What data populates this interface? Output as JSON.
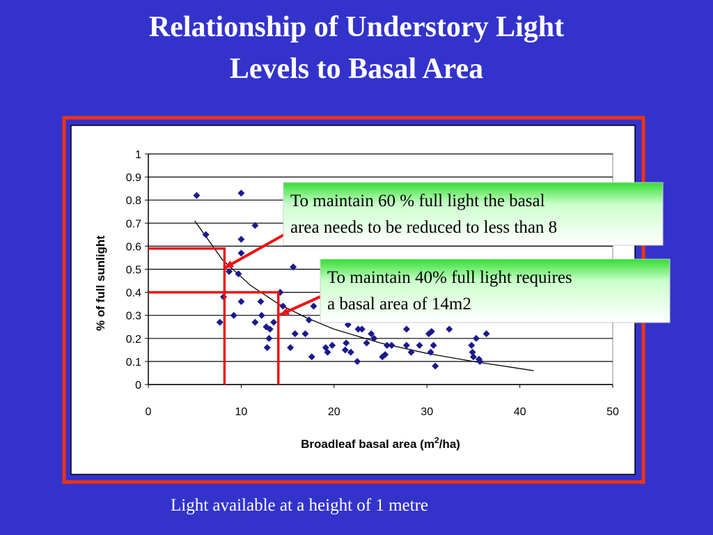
{
  "title": [
    "Relationship of Understory Light",
    "Levels to Basal Area"
  ],
  "caption": "Light available at a height of 1 metre",
  "chart_data": {
    "type": "scatter",
    "x_label": [
      "Broadleaf basal area (m",
      "2",
      "/ha)"
    ],
    "y_label": "% of full sunlight",
    "xlim": [
      0,
      50
    ],
    "xticks": [
      0,
      10,
      20,
      30,
      40,
      50
    ],
    "ylim": [
      0,
      1
    ],
    "yticks": [
      0,
      0.1,
      0.2,
      0.3,
      0.4,
      0.5,
      0.6,
      0.7,
      0.8,
      0.9,
      1
    ],
    "grid": true,
    "color": "#1a1a8c",
    "guide_color": "#ee1111",
    "x": [
      5.2,
      6.2,
      10,
      7.7,
      8.1,
      8.7,
      9.2,
      9.7,
      10,
      10,
      10,
      11.5,
      11.5,
      12.1,
      12.2,
      12.7,
      12.8,
      13,
      13.1,
      13.5,
      14.2,
      14.5,
      15.3,
      15.6,
      15.8,
      16.9,
      17.3,
      17.6,
      17.8,
      19.1,
      19.3,
      19.8,
      21.2,
      21.3,
      21.5,
      21.8,
      22.5,
      22.6,
      23,
      23.5,
      24,
      24.3,
      25.2,
      25.5,
      25.7,
      26.2,
      27.8,
      27.8,
      28.3,
      29.2,
      30.2,
      30.4,
      30.5,
      30.7,
      30.9,
      32.4,
      34.8,
      34.9,
      35,
      35.3,
      35.6,
      35.7,
      36.4
    ],
    "values": [
      0.82,
      0.65,
      0.83,
      0.27,
      0.38,
      0.49,
      0.3,
      0.48,
      0.63,
      0.57,
      0.36,
      0.69,
      0.27,
      0.36,
      0.3,
      0.25,
      0.16,
      0.2,
      0.24,
      0.27,
      0.4,
      0.34,
      0.16,
      0.51,
      0.22,
      0.22,
      0.28,
      0.12,
      0.34,
      0.16,
      0.14,
      0.17,
      0.15,
      0.18,
      0.26,
      0.14,
      0.1,
      0.24,
      0.24,
      0.18,
      0.22,
      0.2,
      0.12,
      0.13,
      0.17,
      0.17,
      0.24,
      0.17,
      0.14,
      0.17,
      0.22,
      0.14,
      0.23,
      0.17,
      0.08,
      0.24,
      0.17,
      0.14,
      0.12,
      0.2,
      0.11,
      0.1,
      0.22
    ],
    "trend": {
      "x": [
        5,
        8,
        11,
        14,
        17,
        20,
        25,
        30,
        35,
        41.5
      ],
      "values": [
        0.71,
        0.54,
        0.43,
        0.35,
        0.29,
        0.24,
        0.18,
        0.135,
        0.1,
        0.06
      ]
    },
    "guides": [
      {
        "x": 8.2,
        "y": 0.59
      },
      {
        "x": 14,
        "y": 0.4
      }
    ],
    "annotations": [
      [
        "To maintain 60 % full light the basal",
        "area needs to be reduced to less than 8"
      ],
      [
        "To maintain 40% full light requires",
        "a basal area of 14m2"
      ]
    ]
  }
}
